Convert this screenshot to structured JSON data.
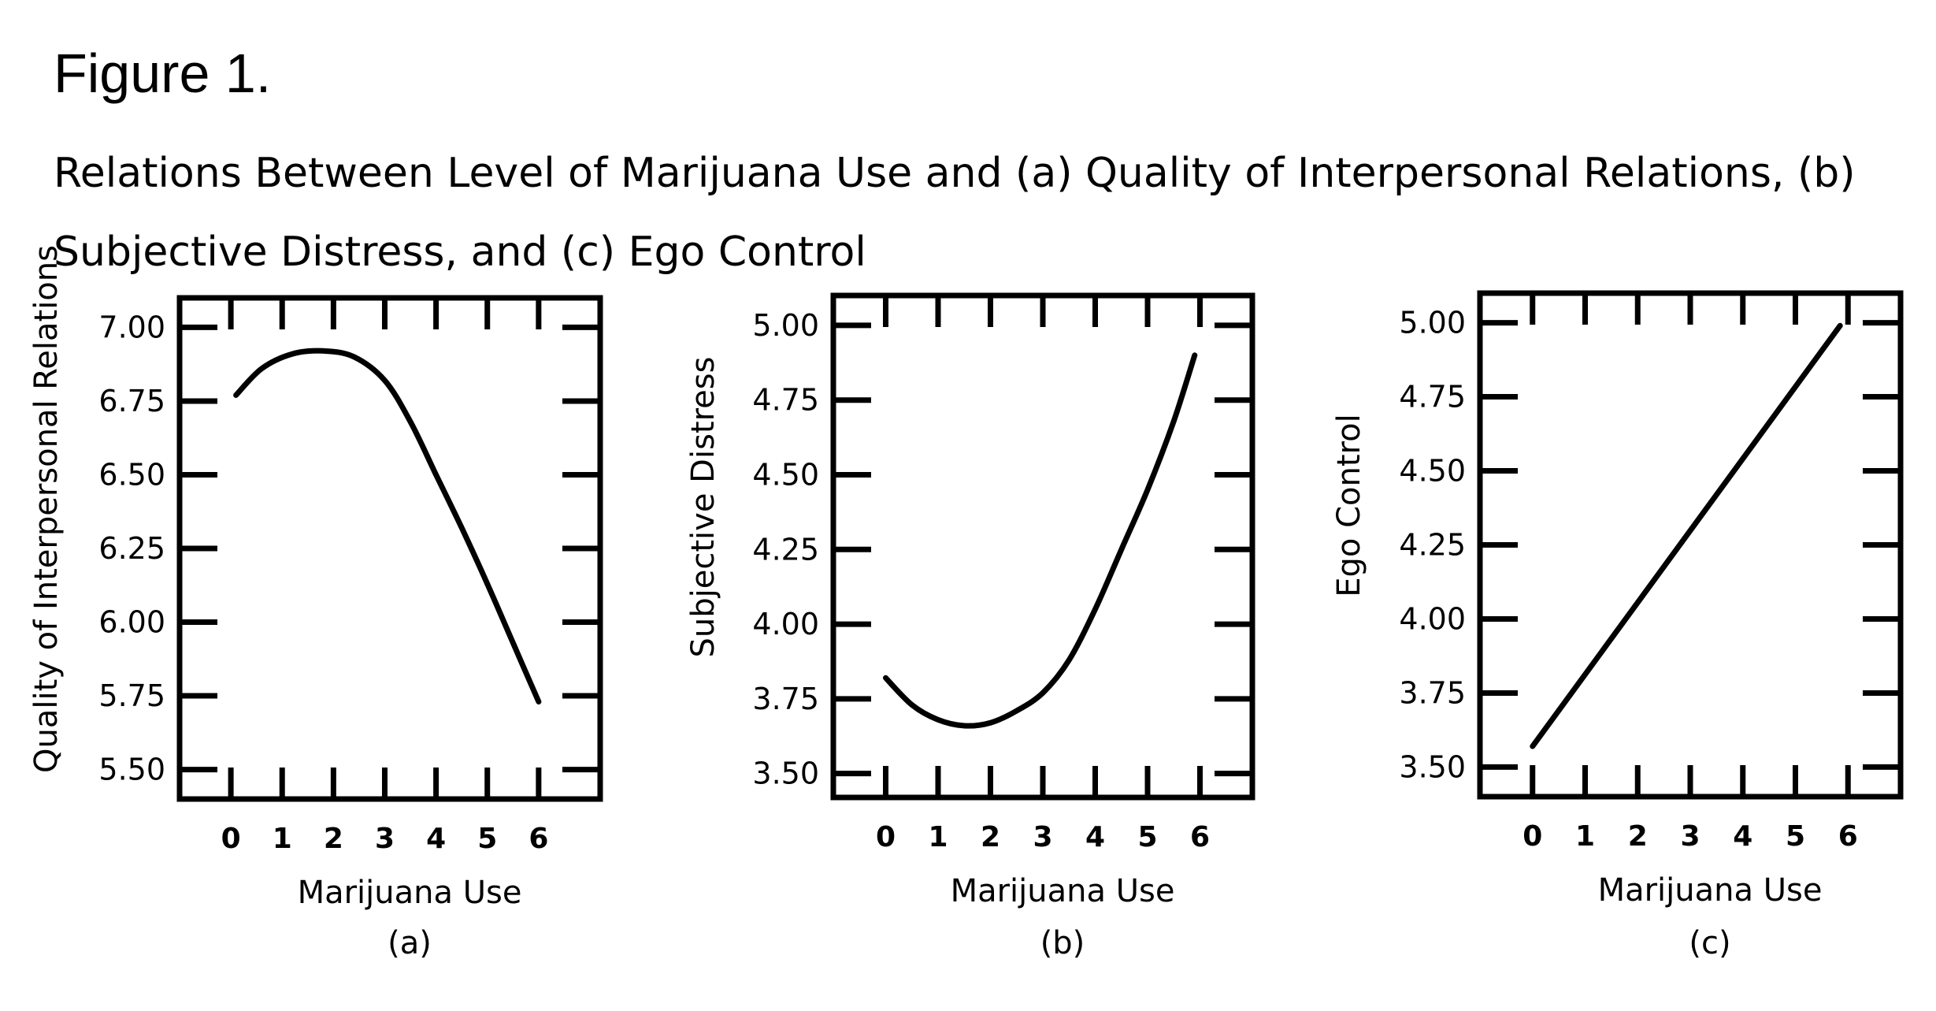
{
  "figure": {
    "title": "Figure 1.",
    "caption": "Relations Between Level of Marijuana Use and (a) Quality of Interpersonal Relations, (b) Subjective Distress, and (c) Ego Control"
  },
  "chart_data": [
    {
      "type": "line",
      "panel_label": "(a)",
      "xlabel": "Marijuana Use",
      "ylabel": "Quality of Interpersonal Relations",
      "x_ticks": [
        "0",
        "1",
        "2",
        "3",
        "4",
        "5",
        "6"
      ],
      "y_ticks": [
        "5.50",
        "5.75",
        "6.00",
        "6.25",
        "6.50",
        "6.75",
        "7.00"
      ],
      "xlim": [
        -1,
        7.2
      ],
      "ylim": [
        5.4,
        7.1
      ],
      "grid": false,
      "series": [
        {
          "x": [
            0.1,
            0.6,
            1.2,
            1.8,
            2.4,
            3.0,
            3.5,
            4.0,
            4.5,
            5.0,
            5.5,
            6.0
          ],
          "y": [
            6.77,
            6.86,
            6.91,
            6.92,
            6.9,
            6.82,
            6.68,
            6.5,
            6.32,
            6.13,
            5.93,
            5.73
          ]
        }
      ]
    },
    {
      "type": "line",
      "panel_label": "(b)",
      "xlabel": "Marijuana Use",
      "ylabel": "Subjective Distress",
      "x_ticks": [
        "0",
        "1",
        "2",
        "3",
        "4",
        "5",
        "6"
      ],
      "y_ticks": [
        "3.50",
        "3.75",
        "4.00",
        "4.25",
        "4.50",
        "4.75",
        "5.00"
      ],
      "xlim": [
        -1,
        7.0
      ],
      "ylim": [
        3.42,
        5.1
      ],
      "grid": false,
      "series": [
        {
          "x": [
            0.0,
            0.5,
            1.0,
            1.5,
            2.0,
            2.5,
            3.0,
            3.5,
            4.0,
            4.5,
            5.0,
            5.5,
            5.9
          ],
          "y": [
            3.82,
            3.73,
            3.68,
            3.66,
            3.67,
            3.71,
            3.77,
            3.88,
            4.05,
            4.25,
            4.45,
            4.68,
            4.9
          ]
        }
      ]
    },
    {
      "type": "line",
      "panel_label": "(c)",
      "xlabel": "Marijuana Use",
      "ylabel": "Ego Control",
      "x_ticks": [
        "0",
        "1",
        "2",
        "3",
        "4",
        "5",
        "6"
      ],
      "y_ticks": [
        "3.50",
        "3.75",
        "4.00",
        "4.25",
        "4.50",
        "4.75",
        "5.00"
      ],
      "xlim": [
        -1,
        7.0
      ],
      "ylim": [
        3.4,
        5.1
      ],
      "grid": false,
      "series": [
        {
          "x": [
            0.0,
            5.85
          ],
          "y": [
            3.57,
            4.99
          ]
        }
      ]
    }
  ]
}
